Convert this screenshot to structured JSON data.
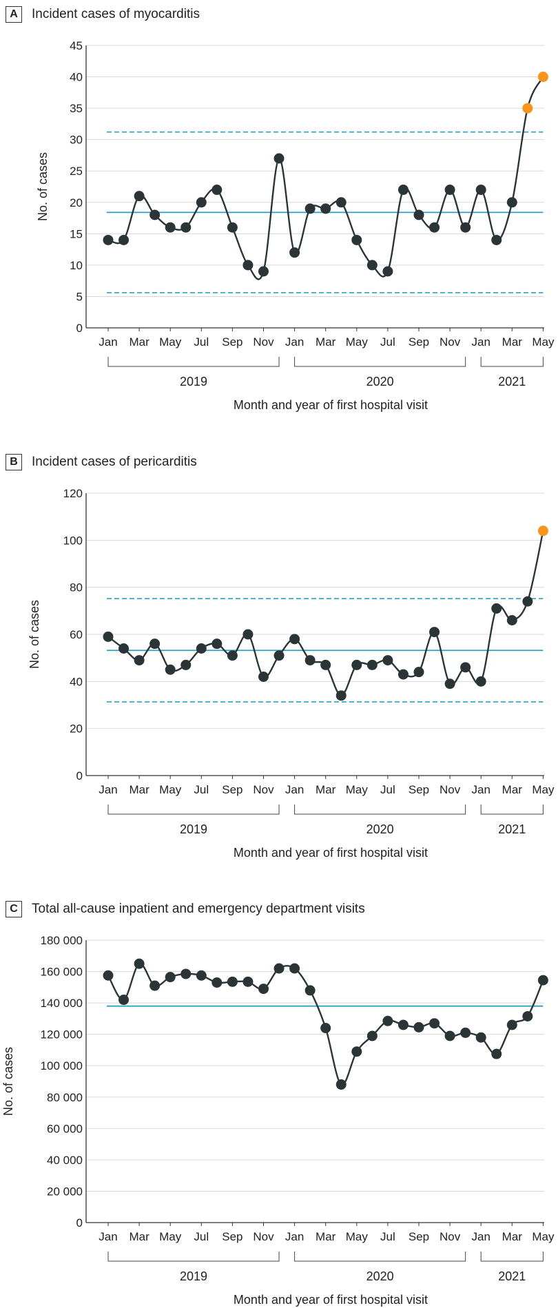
{
  "colors": {
    "line": "#2b3538",
    "limit": "#2aa0c4",
    "signal": "#f7941d",
    "grid": "#d9d9d9"
  },
  "x_tick_labels": [
    "Jan",
    "Mar",
    "May",
    "Jul",
    "Sep",
    "Nov",
    "Jan",
    "Mar",
    "May",
    "Jul",
    "Sep",
    "Nov",
    "Jan",
    "Mar",
    "May"
  ],
  "year_labels": [
    "2019",
    "2020",
    "2021"
  ],
  "xlabel": "Month and year of first hospital visit",
  "ylabel": "No. of cases",
  "chart_data": [
    {
      "type": "line",
      "letter": "A",
      "title": "Incident cases of myocarditis",
      "x": [
        "2019-01",
        "2019-02",
        "2019-03",
        "2019-04",
        "2019-05",
        "2019-06",
        "2019-07",
        "2019-08",
        "2019-09",
        "2019-10",
        "2019-11",
        "2019-12",
        "2020-01",
        "2020-02",
        "2020-03",
        "2020-04",
        "2020-05",
        "2020-06",
        "2020-07",
        "2020-08",
        "2020-09",
        "2020-10",
        "2020-11",
        "2020-12",
        "2021-01",
        "2021-02",
        "2021-03",
        "2021-04",
        "2021-05"
      ],
      "values": [
        14,
        14,
        21,
        18,
        16,
        16,
        20,
        22,
        16,
        10,
        9,
        27,
        12,
        19,
        19,
        20,
        14,
        10,
        9,
        22,
        18,
        16,
        22,
        16,
        22,
        14,
        20,
        35,
        40
      ],
      "signal_points": [
        "2021-04",
        "2021-05"
      ],
      "center_line": 18.4,
      "upper_control_limit": 31.2,
      "lower_control_limit": 5.6,
      "ylim": [
        0,
        45
      ],
      "yticks": [
        0,
        5,
        10,
        15,
        20,
        25,
        30,
        35,
        40,
        45
      ],
      "ytick_labels": [
        "0",
        "5",
        "10",
        "15",
        "20",
        "25",
        "30",
        "35",
        "40",
        "45"
      ],
      "grid": true
    },
    {
      "type": "line",
      "letter": "B",
      "title": "Incident cases of pericarditis",
      "x": [
        "2019-01",
        "2019-02",
        "2019-03",
        "2019-04",
        "2019-05",
        "2019-06",
        "2019-07",
        "2019-08",
        "2019-09",
        "2019-10",
        "2019-11",
        "2019-12",
        "2020-01",
        "2020-02",
        "2020-03",
        "2020-04",
        "2020-05",
        "2020-06",
        "2020-07",
        "2020-08",
        "2020-09",
        "2020-10",
        "2020-11",
        "2020-12",
        "2021-01",
        "2021-02",
        "2021-03",
        "2021-04",
        "2021-05"
      ],
      "values": [
        59,
        54,
        49,
        56,
        45,
        47,
        54,
        56,
        51,
        60,
        42,
        51,
        58,
        49,
        47,
        34,
        47,
        47,
        49,
        43,
        44,
        61,
        39,
        46,
        40,
        71,
        66,
        74,
        104
      ],
      "signal_points": [
        "2021-05"
      ],
      "center_line": 53.2,
      "upper_control_limit": 75.2,
      "lower_control_limit": 31.3,
      "ylim": [
        0,
        120
      ],
      "yticks": [
        0,
        20,
        40,
        60,
        80,
        100,
        120
      ],
      "ytick_labels": [
        "0",
        "20",
        "40",
        "60",
        "80",
        "100",
        "120"
      ],
      "grid": true
    },
    {
      "type": "line",
      "letter": "C",
      "title": "Total all-cause inpatient and emergency department visits",
      "x": [
        "2019-01",
        "2019-02",
        "2019-03",
        "2019-04",
        "2019-05",
        "2019-06",
        "2019-07",
        "2019-08",
        "2019-09",
        "2019-10",
        "2019-11",
        "2019-12",
        "2020-01",
        "2020-02",
        "2020-03",
        "2020-04",
        "2020-05",
        "2020-06",
        "2020-07",
        "2020-08",
        "2020-09",
        "2020-10",
        "2020-11",
        "2020-12",
        "2021-01",
        "2021-02",
        "2021-03",
        "2021-04",
        "2021-05"
      ],
      "values": [
        157500,
        142000,
        165000,
        151000,
        156500,
        158500,
        157500,
        153000,
        153500,
        153500,
        149000,
        162000,
        162000,
        148000,
        124000,
        88000,
        109000,
        119000,
        128500,
        126000,
        124500,
        127000,
        119000,
        121000,
        118000,
        107500,
        126000,
        131500,
        154500
      ],
      "signal_points": [],
      "center_line": 138000,
      "ylim": [
        0,
        180000
      ],
      "yticks": [
        0,
        20000,
        40000,
        60000,
        80000,
        100000,
        120000,
        140000,
        160000,
        180000
      ],
      "ytick_labels": [
        "0",
        "20 000",
        "40 000",
        "60 000",
        "80 000",
        "100 000",
        "120 000",
        "140 000",
        "160 000",
        "180 000"
      ],
      "grid": true
    }
  ]
}
